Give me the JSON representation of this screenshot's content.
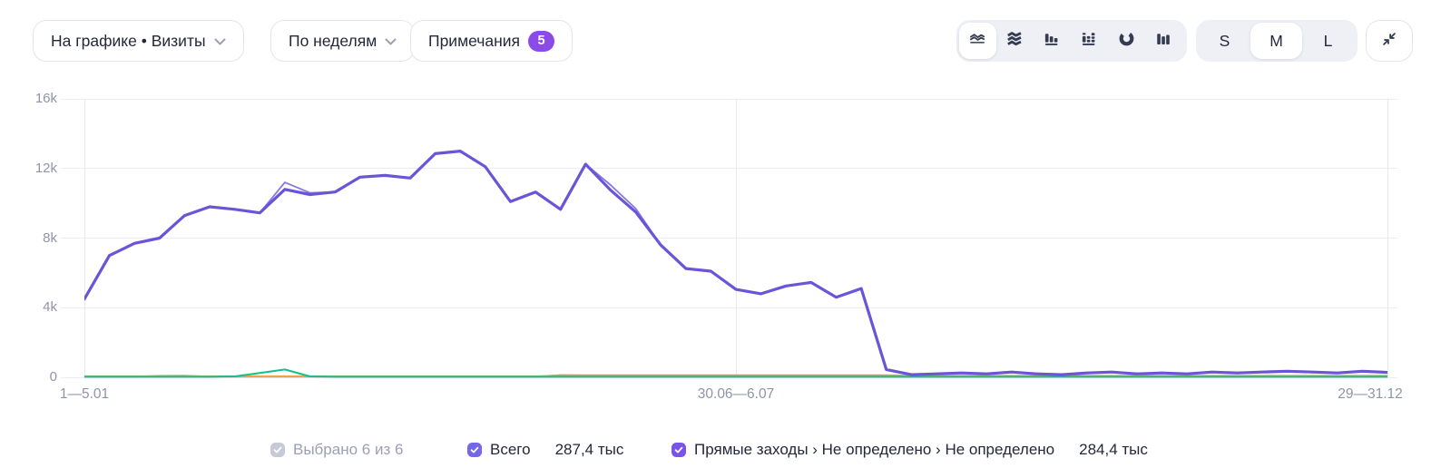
{
  "toolbar": {
    "metric_dropdown": "На графике • Визиты",
    "grouping_dropdown": "По неделям",
    "notes_label": "Примечания",
    "notes_count": "5",
    "chart_type_icons": [
      "line-chart",
      "stacked-area-chart",
      "bar-chart",
      "stacked-bar-chart",
      "pie-chart",
      "column-chart"
    ],
    "selected_chart_type": "line-chart",
    "sizes": [
      "S",
      "M",
      "L"
    ],
    "selected_size": "M"
  },
  "chart_data": {
    "type": "line",
    "x_axis": {
      "tick_labels": [
        "1—5.01",
        "30.06—6.07",
        "29—31.12"
      ],
      "points": 53
    },
    "y_axis": {
      "tick_labels_top_to_bottom": [
        "16k",
        "12k",
        "8k",
        "4k",
        "0"
      ],
      "min": 0,
      "max": 16000
    },
    "grid": true,
    "legend_position": "bottom",
    "series": [
      {
        "name": "series-light-blue",
        "color": "#a8c4e6",
        "width": 1.8,
        "values": [
          30,
          30,
          30,
          100,
          110,
          30,
          30,
          30,
          30,
          30,
          30,
          30,
          30,
          30,
          30,
          30,
          30,
          30,
          30,
          130,
          110,
          30,
          30,
          30,
          30,
          30,
          30,
          30,
          30,
          30,
          30,
          30,
          30,
          30,
          30,
          30,
          30,
          30,
          30,
          30,
          30,
          30,
          30,
          30,
          30,
          30,
          30,
          30,
          30,
          30,
          30,
          30,
          30
        ]
      },
      {
        "name": "series-red",
        "color": "#fc7f72",
        "width": 1.8,
        "values": [
          40,
          40,
          40,
          40,
          40,
          40,
          40,
          40,
          40,
          40,
          40,
          40,
          40,
          40,
          40,
          40,
          40,
          40,
          40,
          120,
          120,
          120,
          120,
          120,
          120,
          120,
          120,
          120,
          120,
          120,
          120,
          120,
          120,
          90,
          90,
          90,
          90,
          90,
          90,
          90,
          90,
          90,
          90,
          90,
          90,
          90,
          90,
          90,
          90,
          90,
          90,
          90,
          90
        ]
      },
      {
        "name": "series-orange",
        "color": "#f2a24c",
        "width": 1.8,
        "values": [
          60,
          60,
          60,
          60,
          60,
          60,
          60,
          60,
          60,
          60,
          60,
          60,
          60,
          60,
          60,
          60,
          60,
          60,
          60,
          60,
          60,
          60,
          60,
          60,
          60,
          60,
          60,
          60,
          60,
          60,
          60,
          60,
          60,
          60,
          60,
          60,
          60,
          60,
          60,
          60,
          60,
          60,
          60,
          60,
          60,
          60,
          60,
          60,
          60,
          60,
          60,
          60,
          60
        ]
      },
      {
        "name": "series-green",
        "color": "#16bd92",
        "width": 2,
        "values": [
          30,
          30,
          30,
          30,
          30,
          30,
          50,
          250,
          450,
          50,
          30,
          30,
          30,
          30,
          30,
          30,
          30,
          30,
          30,
          30,
          30,
          30,
          30,
          30,
          30,
          30,
          30,
          30,
          30,
          30,
          30,
          30,
          30,
          30,
          30,
          30,
          30,
          30,
          30,
          30,
          30,
          30,
          30,
          30,
          30,
          30,
          30,
          30,
          30,
          30,
          30,
          30,
          30
        ]
      },
      {
        "name": "Всего",
        "color": "#8678e6",
        "width": 1.8,
        "values": [
          4500,
          7000,
          7700,
          8000,
          9300,
          9800,
          9650,
          9450,
          11200,
          10600,
          10650,
          11500,
          11600,
          11450,
          12850,
          13000,
          12100,
          10100,
          10650,
          9650,
          12250,
          11050,
          9700,
          7600,
          6250,
          6100,
          5050,
          4800,
          5250,
          5450,
          4600,
          5100,
          450,
          150,
          200,
          250,
          200,
          300,
          200,
          150,
          250,
          300,
          200,
          250,
          200,
          300,
          250,
          300,
          350,
          300,
          250,
          350,
          280
        ]
      },
      {
        "name": "Прямые заходы › Не определено › Не определено",
        "color": "#6b54d8",
        "width": 3.2,
        "values": [
          4500,
          7000,
          7700,
          8000,
          9300,
          9800,
          9650,
          9450,
          10800,
          10500,
          10650,
          11500,
          11600,
          11450,
          12850,
          13000,
          12100,
          10100,
          10650,
          9650,
          12250,
          10750,
          9500,
          7600,
          6250,
          6100,
          5050,
          4800,
          5250,
          5450,
          4600,
          5100,
          450,
          150,
          200,
          250,
          200,
          300,
          200,
          150,
          250,
          300,
          200,
          250,
          200,
          300,
          250,
          300,
          350,
          300,
          250,
          350,
          280
        ]
      }
    ]
  },
  "legend": {
    "selector_label": "Выбрано 6 из 6",
    "selector_color": "#c6cad6",
    "items": [
      {
        "label": "Всего",
        "value": "287,4 тыс",
        "color": "#7468e8"
      },
      {
        "label": "Прямые заходы › Не определено › Не определено",
        "value": "284,4 тыс",
        "color": "#7a54e6"
      }
    ]
  }
}
